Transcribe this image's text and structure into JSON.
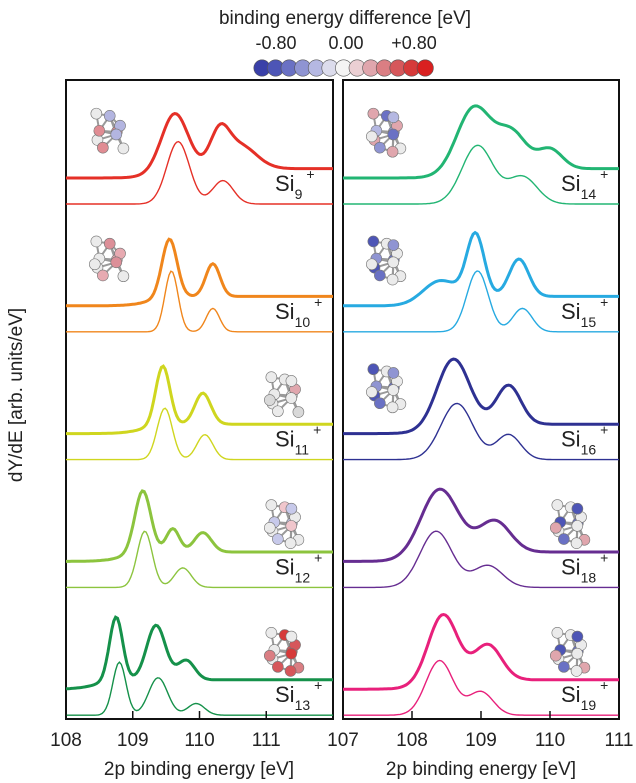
{
  "colorbar": {
    "title": "binding energy difference [eV]",
    "tick_labels": [
      "-0.80",
      "0.00",
      "+0.80"
    ],
    "colors": [
      "#3a40a8",
      "#4d55b6",
      "#6a71c4",
      "#8f94d2",
      "#b5b8e2",
      "#dcdcec",
      "#f4f4f4",
      "#ebcfd3",
      "#e0a6ad",
      "#da7e83",
      "#d6575b",
      "#d63a3a",
      "#d92020"
    ]
  },
  "y_axis_label": "dY/dE [arb. units/eV]",
  "chart_data": [
    {
      "type": "line",
      "panel": "left",
      "xlabel": "2p binding energy [eV]",
      "xlim": [
        108.0,
        112.0
      ],
      "xticks": [
        "108",
        "109",
        "110",
        "111"
      ],
      "series": [
        {
          "label_base": "Si",
          "label_sub": "9",
          "label_sup": "+",
          "color": "#e53027",
          "peaks_thick": [
            [
              109.63,
              0.28,
              0.72
            ],
            [
              110.3,
              0.2,
              0.42
            ],
            [
              110.6,
              0.35,
              0.3
            ]
          ],
          "peaks_thin": [
            [
              109.68,
              0.24,
              0.8
            ],
            [
              110.35,
              0.22,
              0.3
            ]
          ],
          "structure": {
            "atoms": 9,
            "pattern": "mixed"
          }
        },
        {
          "label_base": "Si",
          "label_sub": "10",
          "label_sup": "+",
          "color": "#f0861c",
          "peaks_thick": [
            [
              109.55,
              0.16,
              0.75
            ],
            [
              110.2,
              0.15,
              0.42
            ]
          ],
          "peaks_thin": [
            [
              109.58,
              0.14,
              0.78
            ],
            [
              110.2,
              0.14,
              0.3
            ]
          ],
          "structure": {
            "atoms": 10,
            "pattern": "pink"
          }
        },
        {
          "label_base": "Si",
          "label_sub": "11",
          "label_sup": "+",
          "color": "#cfd61f",
          "peaks_thick": [
            [
              109.45,
              0.15,
              0.76
            ],
            [
              110.05,
              0.17,
              0.4
            ]
          ],
          "peaks_thin": [
            [
              109.48,
              0.16,
              0.66
            ],
            [
              110.08,
              0.17,
              0.32
            ]
          ],
          "structure": {
            "atoms": 11,
            "pattern": "gray"
          }
        },
        {
          "label_base": "Si",
          "label_sub": "12",
          "label_sup": "+",
          "color": "#8cc43e",
          "peaks_thick": [
            [
              109.15,
              0.17,
              0.8
            ],
            [
              109.6,
              0.14,
              0.3
            ],
            [
              110.05,
              0.18,
              0.25
            ]
          ],
          "peaks_thin": [
            [
              109.18,
              0.16,
              0.72
            ],
            [
              109.75,
              0.18,
              0.25
            ]
          ],
          "structure": {
            "atoms": 12,
            "pattern": "light"
          }
        },
        {
          "label_base": "Si",
          "label_sub": "13",
          "label_sup": "+",
          "color": "#15914a",
          "peaks_thick": [
            [
              108.75,
              0.14,
              0.82
            ],
            [
              109.35,
              0.2,
              0.7
            ],
            [
              109.8,
              0.18,
              0.25
            ]
          ],
          "peaks_thin": [
            [
              108.8,
              0.14,
              0.68
            ],
            [
              109.38,
              0.2,
              0.48
            ],
            [
              109.95,
              0.18,
              0.15
            ]
          ],
          "structure": {
            "atoms": 13,
            "pattern": "red"
          }
        }
      ]
    },
    {
      "type": "line",
      "panel": "right",
      "xlabel": "2p binding energy [eV]",
      "xlim": [
        107.0,
        111.0
      ],
      "xticks": [
        "107",
        "108",
        "109",
        "110",
        "111"
      ],
      "series": [
        {
          "label_base": "Si",
          "label_sub": "14",
          "label_sup": "+",
          "color": "#22b573",
          "peaks_thick": [
            [
              108.9,
              0.35,
              0.8
            ],
            [
              109.45,
              0.3,
              0.45
            ],
            [
              110.0,
              0.25,
              0.25
            ]
          ],
          "peaks_thin": [
            [
              108.95,
              0.32,
              0.75
            ],
            [
              109.6,
              0.3,
              0.35
            ]
          ],
          "structure": {
            "atoms": 14,
            "pattern": "blue-pink"
          }
        },
        {
          "label_base": "Si",
          "label_sub": "15",
          "label_sup": "+",
          "color": "#27aae1",
          "peaks_thick": [
            [
              108.92,
              0.18,
              0.8
            ],
            [
              109.55,
              0.2,
              0.48
            ],
            [
              108.4,
              0.35,
              0.3
            ]
          ],
          "peaks_thin": [
            [
              108.95,
              0.22,
              0.78
            ],
            [
              109.6,
              0.2,
              0.3
            ]
          ],
          "structure": {
            "atoms": 15,
            "pattern": "blue-top"
          }
        },
        {
          "label_base": "Si",
          "label_sub": "16",
          "label_sup": "+",
          "color": "#2e3192",
          "peaks_thick": [
            [
              108.6,
              0.33,
              0.85
            ],
            [
              109.4,
              0.25,
              0.5
            ]
          ],
          "peaks_thin": [
            [
              108.65,
              0.33,
              0.72
            ],
            [
              109.4,
              0.25,
              0.32
            ]
          ],
          "structure": {
            "atoms": 16,
            "pattern": "blue-top"
          }
        },
        {
          "label_base": "Si",
          "label_sub": "18",
          "label_sup": "+",
          "color": "#662d91",
          "peaks_thick": [
            [
              108.4,
              0.38,
              0.82
            ],
            [
              109.2,
              0.32,
              0.4
            ]
          ],
          "peaks_thin": [
            [
              108.35,
              0.33,
              0.72
            ],
            [
              109.1,
              0.3,
              0.28
            ]
          ],
          "structure": {
            "atoms": 18,
            "pattern": "blue-sides"
          }
        },
        {
          "label_base": "Si",
          "label_sub": "19",
          "label_sup": "+",
          "color": "#e8207b",
          "peaks_thick": [
            [
              108.45,
              0.3,
              0.85
            ],
            [
              109.1,
              0.28,
              0.45
            ]
          ],
          "peaks_thin": [
            [
              108.4,
              0.28,
              0.7
            ],
            [
              109.0,
              0.25,
              0.3
            ]
          ],
          "structure": {
            "atoms": 19,
            "pattern": "blue-sides"
          }
        }
      ]
    }
  ]
}
